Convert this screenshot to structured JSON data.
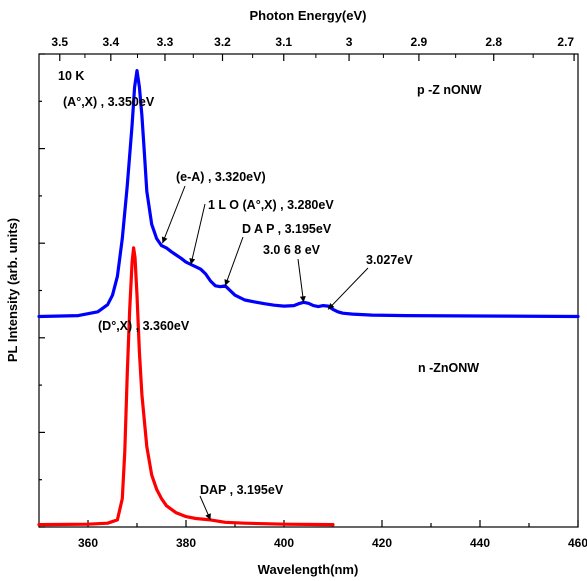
{
  "chart_data": {
    "type": "line",
    "xlabel": "Wavelength(nm)",
    "ylabel": "PL Intensity (arb. units)",
    "x2label": "Photon Energy(eV)",
    "xlim": [
      350,
      460
    ],
    "ylim": [
      0,
      10
    ],
    "x_ticks": [
      360,
      380,
      400,
      420,
      440,
      460
    ],
    "x2_ticks": [
      "3.5",
      "3.4",
      "3.3",
      "3.2",
      "3.1",
      "3",
      "2.9",
      "2.8",
      "2.7"
    ],
    "y_tick_labels_shown": false,
    "grid": false,
    "legend": "none",
    "series": [
      {
        "color": "#0000ff",
        "x": [
          350,
          358,
          362,
          364,
          365,
          366,
          367,
          368,
          369,
          369.5,
          370,
          370.5,
          371,
          371.5,
          372,
          373,
          374,
          375,
          376,
          377,
          378,
          379,
          380,
          381,
          382,
          383,
          384,
          385,
          386,
          387,
          388,
          389,
          390,
          392,
          394,
          396,
          398,
          400,
          402,
          403,
          404,
          405,
          406,
          407,
          408,
          409,
          410,
          411,
          412,
          414,
          418,
          425,
          440,
          460
        ],
        "y": [
          4.45,
          4.47,
          4.55,
          4.7,
          4.9,
          5.3,
          6.1,
          7.2,
          8.5,
          9.3,
          9.65,
          9.3,
          8.7,
          7.9,
          7.1,
          6.4,
          6.1,
          5.95,
          5.9,
          5.82,
          5.75,
          5.68,
          5.6,
          5.55,
          5.5,
          5.45,
          5.35,
          5.2,
          5.1,
          5.08,
          5.1,
          5.0,
          4.9,
          4.8,
          4.76,
          4.72,
          4.69,
          4.67,
          4.68,
          4.72,
          4.75,
          4.73,
          4.68,
          4.66,
          4.68,
          4.67,
          4.6,
          4.55,
          4.52,
          4.5,
          4.48,
          4.47,
          4.46,
          4.45
        ]
      },
      {
        "color": "#ff0000",
        "x": [
          350,
          360,
          364,
          366,
          367,
          367.5,
          368,
          368.5,
          369,
          369.3,
          369.6,
          370,
          370.5,
          371,
          372,
          373,
          374,
          375,
          376,
          378,
          380,
          382,
          385,
          388,
          392,
          400,
          410
        ],
        "y": [
          0.05,
          0.06,
          0.08,
          0.15,
          0.6,
          1.6,
          3.2,
          4.6,
          5.6,
          5.9,
          5.7,
          4.9,
          3.7,
          2.8,
          1.7,
          1.1,
          0.8,
          0.6,
          0.45,
          0.3,
          0.22,
          0.18,
          0.15,
          0.1,
          0.08,
          0.06,
          0.05
        ]
      }
    ],
    "annotations": [
      {
        "id": "annot-10k",
        "text": "10 K"
      },
      {
        "id": "annot-pzno",
        "text": "p -Z nONW"
      },
      {
        "id": "annot-nzno",
        "text": "n -ZnONW"
      },
      {
        "id": "annot-aox",
        "text": "(A°,X) , 3.350eV"
      },
      {
        "id": "annot-ea",
        "text": "(e-A) , 3.320eV)"
      },
      {
        "id": "annot-1lo",
        "text": "1 L O (A°,X) , 3.280eV"
      },
      {
        "id": "annot-dap-p",
        "text": "D A P , 3.195eV"
      },
      {
        "id": "annot-3068",
        "text": "3.0 6 8  eV"
      },
      {
        "id": "annot-3027",
        "text": "3.027eV"
      },
      {
        "id": "annot-dox",
        "text": "(D°,X) , 3.360eV"
      },
      {
        "id": "annot-dap-n",
        "text": "DAP ,  3.195eV"
      }
    ]
  }
}
